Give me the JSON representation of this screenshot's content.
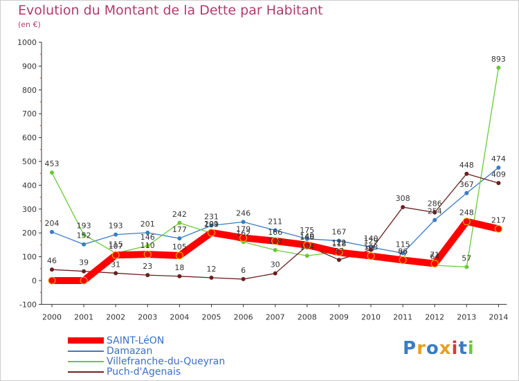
{
  "title": "Evolution du Montant de la Dette par Habitant",
  "unit": "(en €)",
  "brand": "Proxiti",
  "chart_data": {
    "type": "line",
    "title": "Evolution du Montant de la Dette par Habitant",
    "ylabel": "(en €)",
    "xlabel": "",
    "ylim": [
      -100,
      1000
    ],
    "yticks": [
      -100,
      0,
      100,
      200,
      300,
      400,
      500,
      600,
      700,
      800,
      900,
      1000
    ],
    "categories": [
      "2000",
      "2001",
      "2002",
      "2003",
      "2004",
      "2005",
      "2006",
      "2007",
      "2008",
      "2009",
      "2010",
      "2011",
      "2012",
      "2013",
      "2014"
    ],
    "grid": false,
    "legend_position": "bottom-left",
    "series": [
      {
        "name": "SAINT-LéON",
        "color": "#ff0000",
        "values": [
          0,
          0,
          107,
          110,
          105,
          201,
          179,
          166,
          149,
          118,
          103,
          86,
          71,
          248,
          217
        ],
        "labels": [
          "",
          "",
          "107",
          "110",
          "105",
          "201",
          "179",
          "166",
          "149",
          "118",
          "103",
          "86",
          "71",
          "248",
          "217"
        ]
      },
      {
        "name": "Damazan",
        "color": "#3a7cc4",
        "values": [
          204,
          152,
          193,
          201,
          177,
          231,
          246,
          211,
          175,
          167,
          140,
          115,
          254,
          367,
          474
        ],
        "labels": [
          "204",
          "152",
          "193",
          "201",
          "177",
          "231",
          "246",
          "211",
          "175",
          "167",
          "140",
          "115",
          "254",
          "367",
          "474"
        ]
      },
      {
        "name": "Villefranche-du-Queyran",
        "color": "#6ac93a",
        "values": [
          453,
          193,
          115,
          146,
          242,
          199,
          162,
          128,
          104,
          122,
          97,
          77,
          64,
          57,
          893
        ],
        "labels": [
          "453",
          "193",
          "115",
          "146",
          "242",
          "199",
          "162",
          "128",
          "104",
          "122",
          "97",
          "77",
          "64",
          "57",
          "893"
        ]
      },
      {
        "name": "Puch-d'Agenais",
        "color": "#6b1f1f",
        "values": [
          46,
          39,
          31,
          23,
          18,
          12,
          6,
          30,
          146,
          87,
          129,
          308,
          286,
          448,
          409
        ],
        "labels": [
          "46",
          "39",
          "31",
          "23",
          "18",
          "12",
          "6",
          "30",
          "146",
          "87",
          "129",
          "308",
          "286",
          "448",
          "409"
        ]
      }
    ]
  }
}
